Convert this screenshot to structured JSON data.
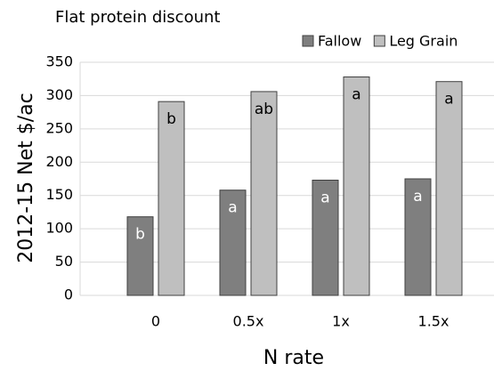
{
  "chart_data": {
    "type": "bar",
    "title": "Flat protein discount",
    "x_label": "N rate",
    "y_label": "2012-15 Net $/ac",
    "categories": [
      "0",
      "0.5x",
      "1x",
      "1.5x"
    ],
    "series": [
      {
        "name": "Fallow",
        "color": "#7f7f7f",
        "values": [
          118,
          158,
          173,
          175
        ],
        "letters": [
          "b",
          "a",
          "a",
          "a"
        ],
        "letter_color": "#ffffff"
      },
      {
        "name": "Leg Grain",
        "color": "#bfbfbf",
        "values": [
          291,
          306,
          328,
          321
        ],
        "letters": [
          "b",
          "ab",
          "a",
          "a"
        ],
        "letter_color": "#000000"
      }
    ],
    "ylim": [
      0,
      350
    ],
    "yticks": [
      0,
      50,
      100,
      150,
      200,
      250,
      300,
      350
    ],
    "grid": true
  }
}
